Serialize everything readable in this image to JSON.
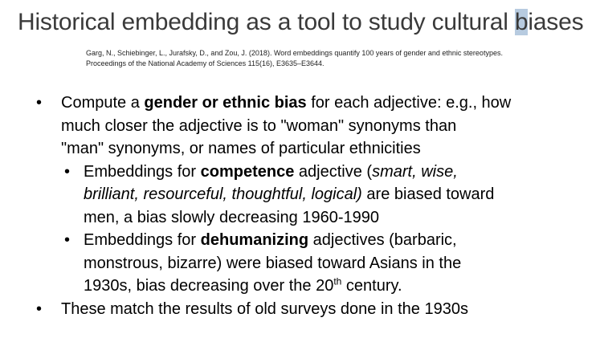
{
  "title": {
    "before": "Historical embedding as a tool to study cultural ",
    "highlighted": "b",
    "after": "iases"
  },
  "citation": {
    "line1": "Garg, N., Schiebinger, L., Jurafsky, D., and Zou, J. (2018). Word embeddings quantify 100 years of gender and ethnic stereotypes.",
    "line2": "Proceedings of the National Academy of Sciences 115(16), E3635–E3644."
  },
  "bullet_symbol": "•",
  "bullets": {
    "b1": {
      "pre": "Compute a ",
      "bold": "gender or ethnic bias",
      "post": " for each adjective: e.g., how",
      "line2": "much closer the adjective is to \"woman\" synonyms than",
      "line3": "\"man\" synonyms, or names of particular ethnicities"
    },
    "b1a": {
      "pre": "Embeddings for ",
      "bold": "competence",
      "mid": " adjective (",
      "italic1": "smart, wise,",
      "italic2": "brilliant, resourceful, thoughtful, logical)",
      "post2": " are biased toward",
      "line3": "men, a bias slowly decreasing 1960-1990"
    },
    "b1b": {
      "pre": "Embeddings for ",
      "bold": "dehumanizing",
      "post": " adjectives (barbaric,",
      "line2": "monstrous, bizarre)  were biased toward Asians in the",
      "line3_pre": "1930s, bias decreasing over the 20",
      "sup": "th",
      "line3_post": " century."
    },
    "b2": {
      "text": "These match the results of old surveys done in the 1930s"
    }
  }
}
